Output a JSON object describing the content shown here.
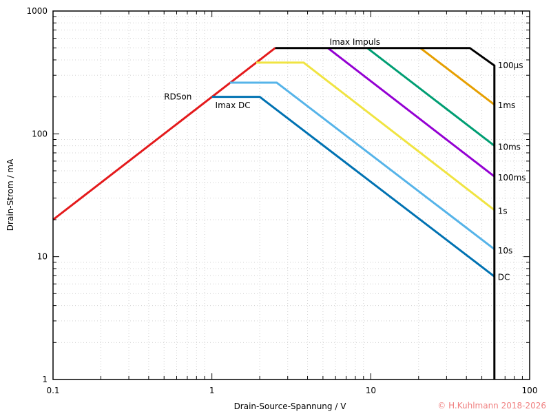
{
  "chart_data": {
    "type": "line",
    "xscale": "log",
    "yscale": "log",
    "xlabel": "Drain-Source-Spannung / V",
    "ylabel": "Drain-Strom / mA",
    "xlim": [
      0.1,
      100
    ],
    "ylim": [
      1,
      1000
    ],
    "xticks": [
      {
        "v": 0.1,
        "label": "0.1"
      },
      {
        "v": 1,
        "label": "1"
      },
      {
        "v": 10,
        "label": "10"
      },
      {
        "v": 100,
        "label": "100"
      }
    ],
    "yticks": [
      {
        "v": 1,
        "label": "1"
      },
      {
        "v": 10,
        "label": "10"
      },
      {
        "v": 100,
        "label": "100"
      },
      {
        "v": 1000,
        "label": "1000"
      }
    ],
    "grid": true,
    "series": [
      {
        "name": "RDSon",
        "color": "#e41a1c",
        "points": [
          [
            0.1,
            20
          ],
          [
            2.5,
            500
          ]
        ],
        "label_at": [
          0.5,
          200
        ],
        "label_anchor": "end-left"
      },
      {
        "name": "Imax Impuls",
        "color": "#000000",
        "points": [
          [
            2.5,
            500
          ],
          [
            42,
            500
          ],
          [
            60,
            360
          ],
          [
            60,
            1
          ]
        ],
        "label_at": [
          8,
          500
        ],
        "label_anchor": "above"
      },
      {
        "name": "100µs",
        "color": "#e69f00",
        "points": [
          [
            20.5,
            500
          ],
          [
            60,
            173
          ]
        ]
      },
      {
        "name": "1ms",
        "color": "#e69f00",
        "points": [],
        "label_only": true
      },
      {
        "name": "10ms",
        "color": "#009e73",
        "points": [
          [
            9.5,
            500
          ],
          [
            60,
            80
          ]
        ]
      },
      {
        "name": "100ms",
        "color": "#9400d3",
        "points": [
          [
            5.37,
            500
          ],
          [
            60,
            45
          ]
        ]
      },
      {
        "name": "1s",
        "color": "#f0e442",
        "points": [
          [
            1.9,
            380
          ],
          [
            3.78,
            380
          ],
          [
            60,
            24
          ]
        ]
      },
      {
        "name": "10s",
        "color": "#56b4e9",
        "points": [
          [
            1.3,
            261
          ],
          [
            2.56,
            261
          ],
          [
            60,
            11.5
          ]
        ]
      },
      {
        "name": "DC",
        "color": "#0072b2",
        "points": [
          [
            1,
            200
          ],
          [
            2.0,
            200
          ],
          [
            60,
            6.9
          ]
        ]
      },
      {
        "name": "Imax DC",
        "color": "#0072b2",
        "points": [],
        "label_only": true
      }
    ],
    "annotations": [
      {
        "text": "RDSon",
        "x": 0.5,
        "y": 200
      },
      {
        "text": "Imax DC",
        "x": 1.05,
        "y": 170
      },
      {
        "text": "Imax Impuls",
        "x": 5.5,
        "y": 560
      },
      {
        "text": "100µs",
        "x": 63,
        "y": 360
      },
      {
        "text": "1ms",
        "x": 63,
        "y": 170
      },
      {
        "text": "10ms",
        "x": 63,
        "y": 78
      },
      {
        "text": "100ms",
        "x": 63,
        "y": 44
      },
      {
        "text": "1s",
        "x": 63,
        "y": 23.5
      },
      {
        "text": "10s",
        "x": 63,
        "y": 11.2
      },
      {
        "text": "DC",
        "x": 63,
        "y": 6.8
      }
    ],
    "copyright": "© H.Kuhlmann 2018-2026",
    "copyright_color": "#f08080"
  }
}
